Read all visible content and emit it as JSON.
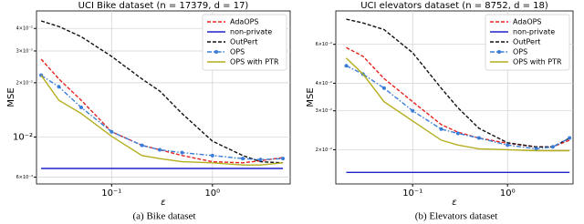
{
  "chart_data": [
    {
      "type": "line",
      "title": "UCI Bike dataset (n = 17379, d = 17)",
      "caption": "(a) Bike dataset",
      "xlabel": "ε",
      "ylabel": "MSE",
      "xscale": "log",
      "yscale": "log",
      "grid": true,
      "legend": "upper right",
      "xlim": [
        0.018,
        5.9
      ],
      "ylim": [
        0.0055,
        0.05
      ],
      "xticks": [
        {
          "value": 0.1,
          "label": "10⁻¹"
        },
        {
          "value": 1,
          "label": "10⁰"
        }
      ],
      "yticks": [
        {
          "value": 0.006,
          "label": "6×10⁻³"
        },
        {
          "value": 0.01,
          "label": "10⁻²"
        },
        {
          "value": 0.02,
          "label": "2×10⁻²"
        },
        {
          "value": 0.03,
          "label": "3×10⁻²"
        },
        {
          "value": 0.04,
          "label": "4×10⁻²"
        }
      ],
      "x": [
        0.02,
        0.03,
        0.05,
        0.1,
        0.2,
        0.3,
        0.5,
        1,
        2,
        3,
        5
      ],
      "series": [
        {
          "name": "AdaOPS",
          "color": "#e8231f",
          "linestyle": "dashed",
          "values": [
            0.027,
            0.021,
            0.016,
            0.0107,
            0.009,
            0.0085,
            0.0079,
            0.0073,
            0.0072,
            0.0074,
            0.0077
          ]
        },
        {
          "name": "non-private",
          "color": "#2020c8",
          "linestyle": "solid",
          "values": [
            0.0067,
            0.0067,
            0.0067,
            0.0067,
            0.0067,
            0.0067,
            0.0067,
            0.0067,
            0.0067,
            0.0067,
            0.0067
          ]
        },
        {
          "name": "OutPert",
          "color": "#111111",
          "linestyle": "dashed",
          "values": [
            0.044,
            0.041,
            0.036,
            0.028,
            0.021,
            0.018,
            0.0135,
            0.0095,
            0.0079,
            0.0073,
            0.0072
          ]
        },
        {
          "name": "OPS",
          "color": "#3a7dd8",
          "linestyle": "dashdot",
          "marker": "circle",
          "values": [
            0.022,
            0.019,
            0.0146,
            0.0107,
            0.009,
            0.0085,
            0.0082,
            0.0079,
            0.0076,
            0.0075,
            0.0076
          ]
        },
        {
          "name": "OPS with PTR",
          "color": "#b5ae1e",
          "linestyle": "solid",
          "values": [
            0.022,
            0.016,
            0.0135,
            0.0101,
            0.0079,
            0.0076,
            0.0073,
            0.0072,
            0.007,
            0.007,
            0.0072
          ]
        }
      ]
    },
    {
      "type": "line",
      "title": "UCI elevators dataset (n = 8752, d = 18)",
      "caption": "(b) Elevators dataset",
      "xlabel": "ε",
      "ylabel": "MSE",
      "xscale": "log",
      "yscale": "log",
      "grid": true,
      "legend": "upper right",
      "xlim": [
        0.0155,
        4.9
      ],
      "ylim": [
        0.014,
        0.085
      ],
      "xticks": [
        {
          "value": 0.1,
          "label": "10⁻¹"
        },
        {
          "value": 1,
          "label": "10⁰"
        }
      ],
      "yticks": [
        {
          "value": 0.02,
          "label": "2×10⁻²"
        },
        {
          "value": 0.03,
          "label": "3×10⁻²"
        },
        {
          "value": 0.04,
          "label": "4×10⁻²"
        },
        {
          "value": 0.06,
          "label": "6×10⁻²"
        }
      ],
      "x": [
        0.02,
        0.03,
        0.05,
        0.1,
        0.2,
        0.3,
        0.5,
        1,
        2,
        3,
        4.5
      ],
      "series": [
        {
          "name": "AdaOPS",
          "color": "#e8231f",
          "linestyle": "dashed",
          "values": [
            0.058,
            0.053,
            0.042,
            0.033,
            0.026,
            0.024,
            0.0226,
            0.0214,
            0.0206,
            0.0206,
            0.0221
          ]
        },
        {
          "name": "non-private",
          "color": "#2020c8",
          "linestyle": "solid",
          "values": [
            0.0158,
            0.0158,
            0.0158,
            0.0158,
            0.0158,
            0.0158,
            0.0158,
            0.0158,
            0.0158,
            0.0158,
            0.0158
          ]
        },
        {
          "name": "OutPert",
          "color": "#111111",
          "linestyle": "dashed",
          "values": [
            0.078,
            0.075,
            0.07,
            0.055,
            0.038,
            0.031,
            0.025,
            0.0215,
            0.0206,
            0.0206,
            0.0226
          ]
        },
        {
          "name": "OPS",
          "color": "#3a7dd8",
          "linestyle": "dashdot",
          "marker": "circle",
          "values": [
            0.048,
            0.044,
            0.038,
            0.03,
            0.0248,
            0.0237,
            0.0226,
            0.021,
            0.0202,
            0.0206,
            0.0226
          ]
        },
        {
          "name": "OPS with PTR",
          "color": "#b5ae1e",
          "linestyle": "solid",
          "values": [
            0.052,
            0.044,
            0.033,
            0.027,
            0.0221,
            0.021,
            0.0202,
            0.02,
            0.0198,
            0.0198,
            0.0198
          ]
        }
      ]
    }
  ]
}
